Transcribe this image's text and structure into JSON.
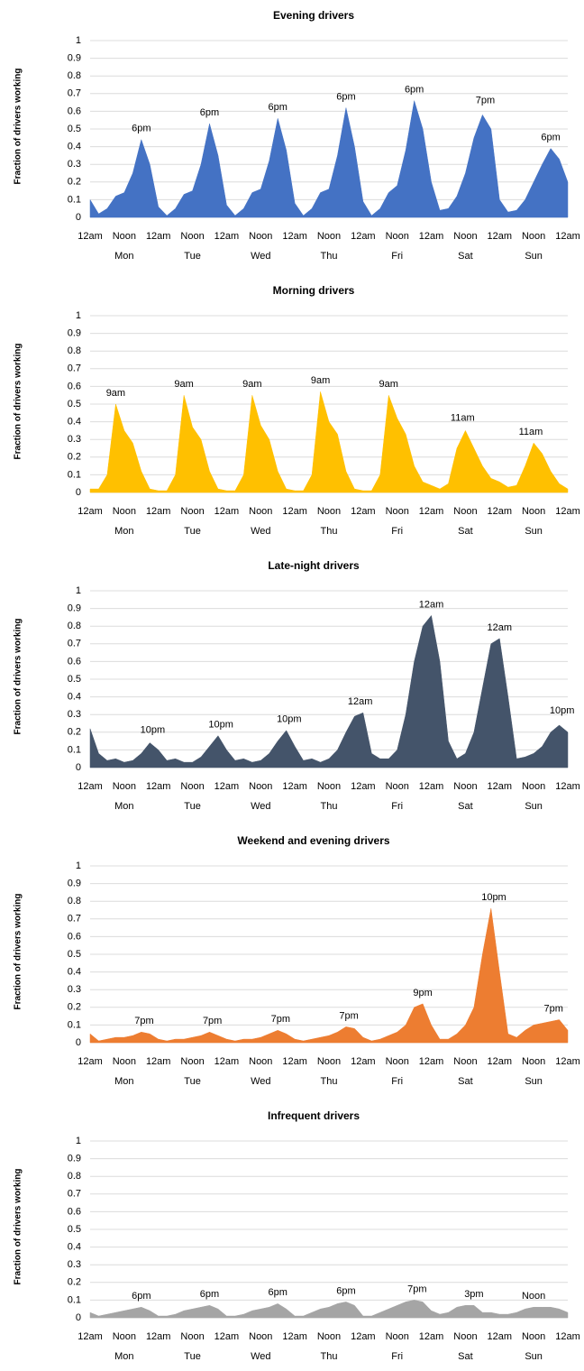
{
  "chart_data": [
    {
      "type": "area",
      "title": "Evening drivers",
      "y_label": "Fraction of drivers working",
      "color": "#4472c4",
      "grid": true,
      "x": [
        0,
        3,
        6,
        9,
        12,
        15,
        18,
        21,
        24,
        27,
        30,
        33,
        36,
        39,
        42,
        45,
        48,
        51,
        54,
        57,
        60,
        63,
        66,
        69,
        72,
        75,
        78,
        81,
        84,
        87,
        90,
        93,
        96,
        99,
        102,
        105,
        108,
        111,
        114,
        117,
        120,
        123,
        126,
        129,
        132,
        135,
        138,
        141,
        144,
        147,
        150,
        153,
        156,
        159,
        162,
        165,
        168
      ],
      "values": [
        0.1,
        0.02,
        0.05,
        0.12,
        0.14,
        0.25,
        0.44,
        0.3,
        0.06,
        0.01,
        0.05,
        0.13,
        0.15,
        0.3,
        0.53,
        0.35,
        0.07,
        0.01,
        0.05,
        0.14,
        0.16,
        0.32,
        0.56,
        0.38,
        0.08,
        0.01,
        0.05,
        0.14,
        0.16,
        0.35,
        0.62,
        0.4,
        0.09,
        0.01,
        0.05,
        0.14,
        0.18,
        0.38,
        0.66,
        0.5,
        0.2,
        0.04,
        0.05,
        0.12,
        0.25,
        0.45,
        0.58,
        0.5,
        0.1,
        0.03,
        0.04,
        0.1,
        0.2,
        0.3,
        0.39,
        0.33,
        0.2
      ],
      "xlim": [
        0,
        168
      ],
      "ylim": [
        0,
        1
      ],
      "yticks": [
        0,
        0.1,
        0.2,
        0.3,
        0.4,
        0.5,
        0.6,
        0.7,
        0.8,
        0.9,
        1
      ],
      "xticks": [
        {
          "value": 0,
          "label": "12am"
        },
        {
          "value": 12,
          "label": "Noon"
        },
        {
          "value": 24,
          "label": "12am"
        },
        {
          "value": 36,
          "label": "Noon"
        },
        {
          "value": 48,
          "label": "12am"
        },
        {
          "value": 60,
          "label": "Noon"
        },
        {
          "value": 72,
          "label": "12am"
        },
        {
          "value": 84,
          "label": "Noon"
        },
        {
          "value": 96,
          "label": "12am"
        },
        {
          "value": 108,
          "label": "Noon"
        },
        {
          "value": 120,
          "label": "12am"
        },
        {
          "value": 132,
          "label": "Noon"
        },
        {
          "value": 144,
          "label": "12am"
        },
        {
          "value": 156,
          "label": "Noon"
        },
        {
          "value": 168,
          "label": "12am"
        }
      ],
      "day_labels": [
        "Mon",
        "Tue",
        "Wed",
        "Thu",
        "Fri",
        "Sat",
        "Sun"
      ],
      "annotations": [
        {
          "text": "6pm",
          "x": 18,
          "y": 0.44
        },
        {
          "text": "6pm",
          "x": 42,
          "y": 0.53
        },
        {
          "text": "6pm",
          "x": 66,
          "y": 0.56
        },
        {
          "text": "6pm",
          "x": 90,
          "y": 0.62
        },
        {
          "text": "6pm",
          "x": 114,
          "y": 0.66
        },
        {
          "text": "7pm",
          "x": 139,
          "y": 0.6
        },
        {
          "text": "6pm",
          "x": 162,
          "y": 0.39
        }
      ]
    },
    {
      "type": "area",
      "title": "Morning drivers",
      "y_label": "Fraction of drivers working",
      "color": "#ffc000",
      "grid": true,
      "x": [
        0,
        3,
        6,
        9,
        12,
        15,
        18,
        21,
        24,
        27,
        30,
        33,
        36,
        39,
        42,
        45,
        48,
        51,
        54,
        57,
        60,
        63,
        66,
        69,
        72,
        75,
        78,
        81,
        84,
        87,
        90,
        93,
        96,
        99,
        102,
        105,
        108,
        111,
        114,
        117,
        120,
        123,
        126,
        129,
        132,
        135,
        138,
        141,
        144,
        147,
        150,
        153,
        156,
        159,
        162,
        165,
        168
      ],
      "values": [
        0.02,
        0.02,
        0.1,
        0.5,
        0.35,
        0.28,
        0.12,
        0.02,
        0.01,
        0.01,
        0.1,
        0.55,
        0.37,
        0.3,
        0.12,
        0.02,
        0.01,
        0.01,
        0.1,
        0.55,
        0.38,
        0.3,
        0.12,
        0.02,
        0.01,
        0.01,
        0.1,
        0.57,
        0.4,
        0.33,
        0.12,
        0.02,
        0.01,
        0.01,
        0.1,
        0.55,
        0.42,
        0.33,
        0.15,
        0.06,
        0.04,
        0.02,
        0.05,
        0.25,
        0.35,
        0.25,
        0.15,
        0.08,
        0.06,
        0.03,
        0.04,
        0.15,
        0.28,
        0.22,
        0.12,
        0.05,
        0.02
      ],
      "xlim": [
        0,
        168
      ],
      "ylim": [
        0,
        1
      ],
      "yticks": [
        0,
        0.1,
        0.2,
        0.3,
        0.4,
        0.5,
        0.6,
        0.7,
        0.8,
        0.9,
        1
      ],
      "xticks": [
        {
          "value": 0,
          "label": "12am"
        },
        {
          "value": 12,
          "label": "Noon"
        },
        {
          "value": 24,
          "label": "12am"
        },
        {
          "value": 36,
          "label": "Noon"
        },
        {
          "value": 48,
          "label": "12am"
        },
        {
          "value": 60,
          "label": "Noon"
        },
        {
          "value": 72,
          "label": "12am"
        },
        {
          "value": 84,
          "label": "Noon"
        },
        {
          "value": 96,
          "label": "12am"
        },
        {
          "value": 108,
          "label": "Noon"
        },
        {
          "value": 120,
          "label": "12am"
        },
        {
          "value": 132,
          "label": "Noon"
        },
        {
          "value": 144,
          "label": "12am"
        },
        {
          "value": 156,
          "label": "Noon"
        },
        {
          "value": 168,
          "label": "12am"
        }
      ],
      "day_labels": [
        "Mon",
        "Tue",
        "Wed",
        "Thu",
        "Fri",
        "Sat",
        "Sun"
      ],
      "annotations": [
        {
          "text": "9am",
          "x": 9,
          "y": 0.5
        },
        {
          "text": "9am",
          "x": 33,
          "y": 0.55
        },
        {
          "text": "9am",
          "x": 57,
          "y": 0.55
        },
        {
          "text": "9am",
          "x": 81,
          "y": 0.57
        },
        {
          "text": "9am",
          "x": 105,
          "y": 0.55
        },
        {
          "text": "11am",
          "x": 131,
          "y": 0.36
        },
        {
          "text": "11am",
          "x": 155,
          "y": 0.28
        }
      ]
    },
    {
      "type": "area",
      "title": "Late-night drivers",
      "y_label": "Fraction of drivers working",
      "color": "#44546a",
      "grid": true,
      "x": [
        0,
        3,
        6,
        9,
        12,
        15,
        18,
        21,
        24,
        27,
        30,
        33,
        36,
        39,
        42,
        45,
        48,
        51,
        54,
        57,
        60,
        63,
        66,
        69,
        72,
        75,
        78,
        81,
        84,
        87,
        90,
        93,
        96,
        99,
        102,
        105,
        108,
        111,
        114,
        117,
        120,
        123,
        126,
        129,
        132,
        135,
        138,
        141,
        144,
        147,
        150,
        153,
        156,
        159,
        162,
        165,
        168
      ],
      "values": [
        0.22,
        0.08,
        0.04,
        0.05,
        0.03,
        0.04,
        0.08,
        0.14,
        0.1,
        0.04,
        0.05,
        0.03,
        0.03,
        0.06,
        0.12,
        0.18,
        0.1,
        0.04,
        0.05,
        0.03,
        0.04,
        0.08,
        0.15,
        0.21,
        0.12,
        0.04,
        0.05,
        0.03,
        0.05,
        0.1,
        0.2,
        0.29,
        0.31,
        0.08,
        0.05,
        0.05,
        0.1,
        0.3,
        0.6,
        0.8,
        0.86,
        0.6,
        0.15,
        0.05,
        0.08,
        0.2,
        0.45,
        0.7,
        0.73,
        0.4,
        0.05,
        0.06,
        0.08,
        0.12,
        0.2,
        0.24,
        0.2
      ],
      "xlim": [
        0,
        168
      ],
      "ylim": [
        0,
        1
      ],
      "yticks": [
        0,
        0.1,
        0.2,
        0.3,
        0.4,
        0.5,
        0.6,
        0.7,
        0.8,
        0.9,
        1
      ],
      "xticks": [
        {
          "value": 0,
          "label": "12am"
        },
        {
          "value": 12,
          "label": "Noon"
        },
        {
          "value": 24,
          "label": "12am"
        },
        {
          "value": 36,
          "label": "Noon"
        },
        {
          "value": 48,
          "label": "12am"
        },
        {
          "value": 60,
          "label": "Noon"
        },
        {
          "value": 72,
          "label": "12am"
        },
        {
          "value": 84,
          "label": "Noon"
        },
        {
          "value": 96,
          "label": "12am"
        },
        {
          "value": 108,
          "label": "Noon"
        },
        {
          "value": 120,
          "label": "12am"
        },
        {
          "value": 132,
          "label": "Noon"
        },
        {
          "value": 144,
          "label": "12am"
        },
        {
          "value": 156,
          "label": "Noon"
        },
        {
          "value": 168,
          "label": "12am"
        }
      ],
      "day_labels": [
        "Mon",
        "Tue",
        "Wed",
        "Thu",
        "Fri",
        "Sat",
        "Sun"
      ],
      "annotations": [
        {
          "text": "10pm",
          "x": 22,
          "y": 0.15
        },
        {
          "text": "10pm",
          "x": 46,
          "y": 0.18
        },
        {
          "text": "10pm",
          "x": 70,
          "y": 0.21
        },
        {
          "text": "12am",
          "x": 95,
          "y": 0.31
        },
        {
          "text": "12am",
          "x": 120,
          "y": 0.86
        },
        {
          "text": "12am",
          "x": 144,
          "y": 0.73
        },
        {
          "text": "10pm",
          "x": 166,
          "y": 0.26
        }
      ]
    },
    {
      "type": "area",
      "title": "Weekend and evening drivers",
      "y_label": "Fraction of drivers working",
      "color": "#ed7d31",
      "grid": true,
      "x": [
        0,
        3,
        6,
        9,
        12,
        15,
        18,
        21,
        24,
        27,
        30,
        33,
        36,
        39,
        42,
        45,
        48,
        51,
        54,
        57,
        60,
        63,
        66,
        69,
        72,
        75,
        78,
        81,
        84,
        87,
        90,
        93,
        96,
        99,
        102,
        105,
        108,
        111,
        114,
        117,
        120,
        123,
        126,
        129,
        132,
        135,
        138,
        141,
        144,
        147,
        150,
        153,
        156,
        159,
        162,
        165,
        168
      ],
      "values": [
        0.05,
        0.01,
        0.02,
        0.03,
        0.03,
        0.04,
        0.06,
        0.05,
        0.02,
        0.01,
        0.02,
        0.02,
        0.03,
        0.04,
        0.06,
        0.04,
        0.02,
        0.01,
        0.02,
        0.02,
        0.03,
        0.05,
        0.07,
        0.05,
        0.02,
        0.01,
        0.02,
        0.03,
        0.04,
        0.06,
        0.09,
        0.08,
        0.03,
        0.01,
        0.02,
        0.04,
        0.06,
        0.1,
        0.2,
        0.22,
        0.1,
        0.02,
        0.02,
        0.05,
        0.1,
        0.2,
        0.5,
        0.76,
        0.4,
        0.05,
        0.03,
        0.07,
        0.1,
        0.11,
        0.12,
        0.13,
        0.07
      ],
      "xlim": [
        0,
        168
      ],
      "ylim": [
        0,
        1
      ],
      "yticks": [
        0,
        0.1,
        0.2,
        0.3,
        0.4,
        0.5,
        0.6,
        0.7,
        0.8,
        0.9,
        1
      ],
      "xticks": [
        {
          "value": 0,
          "label": "12am"
        },
        {
          "value": 12,
          "label": "Noon"
        },
        {
          "value": 24,
          "label": "12am"
        },
        {
          "value": 36,
          "label": "Noon"
        },
        {
          "value": 48,
          "label": "12am"
        },
        {
          "value": 60,
          "label": "Noon"
        },
        {
          "value": 72,
          "label": "12am"
        },
        {
          "value": 84,
          "label": "Noon"
        },
        {
          "value": 96,
          "label": "12am"
        },
        {
          "value": 108,
          "label": "Noon"
        },
        {
          "value": 120,
          "label": "12am"
        },
        {
          "value": 132,
          "label": "Noon"
        },
        {
          "value": 144,
          "label": "12am"
        },
        {
          "value": 156,
          "label": "Noon"
        },
        {
          "value": 168,
          "label": "12am"
        }
      ],
      "day_labels": [
        "Mon",
        "Tue",
        "Wed",
        "Thu",
        "Fri",
        "Sat",
        "Sun"
      ],
      "annotations": [
        {
          "text": "7pm",
          "x": 19,
          "y": 0.06
        },
        {
          "text": "7pm",
          "x": 43,
          "y": 0.06
        },
        {
          "text": "7pm",
          "x": 67,
          "y": 0.07
        },
        {
          "text": "7pm",
          "x": 91,
          "y": 0.09
        },
        {
          "text": "9pm",
          "x": 117,
          "y": 0.22
        },
        {
          "text": "10pm",
          "x": 142,
          "y": 0.76
        },
        {
          "text": "7pm",
          "x": 163,
          "y": 0.13
        }
      ]
    },
    {
      "type": "area",
      "title": "Infrequent drivers",
      "y_label": "Fraction of drivers working",
      "color": "#a5a5a5",
      "grid": true,
      "x": [
        0,
        3,
        6,
        9,
        12,
        15,
        18,
        21,
        24,
        27,
        30,
        33,
        36,
        39,
        42,
        45,
        48,
        51,
        54,
        57,
        60,
        63,
        66,
        69,
        72,
        75,
        78,
        81,
        84,
        87,
        90,
        93,
        96,
        99,
        102,
        105,
        108,
        111,
        114,
        117,
        120,
        123,
        126,
        129,
        132,
        135,
        138,
        141,
        144,
        147,
        150,
        153,
        156,
        159,
        162,
        165,
        168
      ],
      "values": [
        0.03,
        0.01,
        0.02,
        0.03,
        0.04,
        0.05,
        0.06,
        0.04,
        0.01,
        0.01,
        0.02,
        0.04,
        0.05,
        0.06,
        0.07,
        0.05,
        0.01,
        0.01,
        0.02,
        0.04,
        0.05,
        0.06,
        0.08,
        0.05,
        0.01,
        0.01,
        0.03,
        0.05,
        0.06,
        0.08,
        0.09,
        0.07,
        0.01,
        0.01,
        0.03,
        0.05,
        0.07,
        0.09,
        0.1,
        0.09,
        0.04,
        0.02,
        0.03,
        0.06,
        0.07,
        0.07,
        0.03,
        0.03,
        0.02,
        0.02,
        0.03,
        0.05,
        0.06,
        0.06,
        0.06,
        0.05,
        0.03
      ],
      "xlim": [
        0,
        168
      ],
      "ylim": [
        0,
        1
      ],
      "yticks": [
        0,
        0.1,
        0.2,
        0.3,
        0.4,
        0.5,
        0.6,
        0.7,
        0.8,
        0.9,
        1
      ],
      "xticks": [
        {
          "value": 0,
          "label": "12am"
        },
        {
          "value": 12,
          "label": "Noon"
        },
        {
          "value": 24,
          "label": "12am"
        },
        {
          "value": 36,
          "label": "Noon"
        },
        {
          "value": 48,
          "label": "12am"
        },
        {
          "value": 60,
          "label": "Noon"
        },
        {
          "value": 72,
          "label": "12am"
        },
        {
          "value": 84,
          "label": "Noon"
        },
        {
          "value": 96,
          "label": "12am"
        },
        {
          "value": 108,
          "label": "Noon"
        },
        {
          "value": 120,
          "label": "12am"
        },
        {
          "value": 132,
          "label": "Noon"
        },
        {
          "value": 144,
          "label": "12am"
        },
        {
          "value": 156,
          "label": "Noon"
        },
        {
          "value": 168,
          "label": "12am"
        }
      ],
      "day_labels": [
        "Mon",
        "Tue",
        "Wed",
        "Thu",
        "Fri",
        "Sat",
        "Sun"
      ],
      "annotations": [
        {
          "text": "6pm",
          "x": 18,
          "y": 0.06
        },
        {
          "text": "6pm",
          "x": 42,
          "y": 0.07
        },
        {
          "text": "6pm",
          "x": 66,
          "y": 0.08
        },
        {
          "text": "6pm",
          "x": 90,
          "y": 0.09
        },
        {
          "text": "7pm",
          "x": 115,
          "y": 0.1
        },
        {
          "text": "3pm",
          "x": 135,
          "y": 0.07
        },
        {
          "text": "Noon",
          "x": 156,
          "y": 0.06
        }
      ]
    }
  ]
}
